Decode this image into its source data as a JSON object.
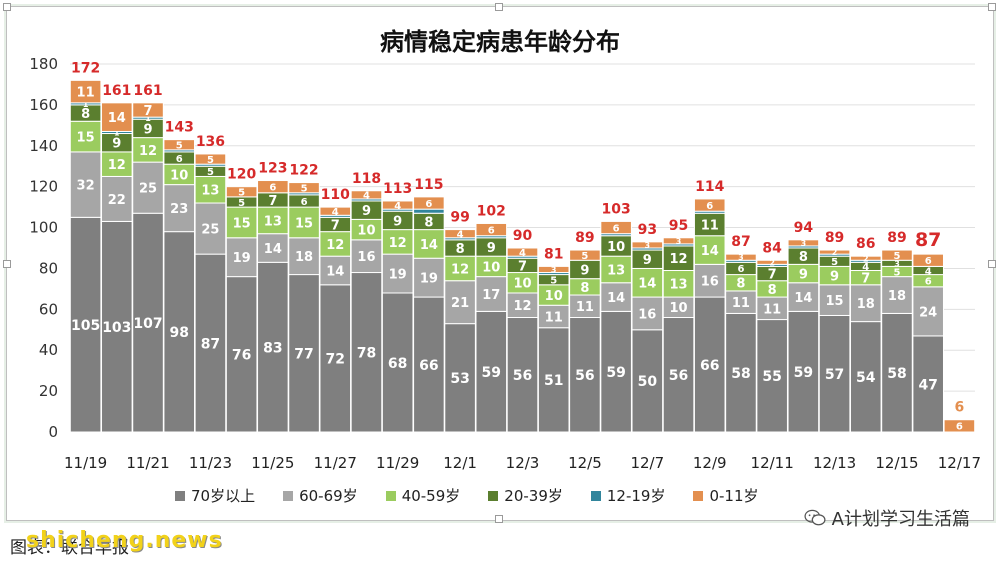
{
  "chart_data": {
    "type": "bar",
    "stacked": true,
    "title": "病情稳定病患年龄分布",
    "ylim": [
      0,
      180
    ],
    "yticks": [
      0,
      20,
      40,
      60,
      80,
      100,
      120,
      140,
      160,
      180
    ],
    "xtick_labels": [
      "11/19",
      "11/21",
      "11/23",
      "11/25",
      "11/27",
      "11/29",
      "12/1",
      "12/3",
      "12/5",
      "12/7",
      "12/9",
      "12/11",
      "12/13",
      "12/15",
      "12/17"
    ],
    "grid": true,
    "legend_position": "bottom",
    "categories": [
      "11/19",
      "11/20",
      "11/21",
      "11/22",
      "11/23",
      "11/24",
      "11/25",
      "11/26",
      "11/27",
      "11/28",
      "11/29",
      "11/30",
      "12/1",
      "12/2",
      "12/3",
      "12/4",
      "12/5",
      "12/6",
      "12/7",
      "12/8",
      "12/9",
      "12/10",
      "12/11",
      "12/12",
      "12/13",
      "12/14",
      "12/15",
      "12/16",
      "12/17"
    ],
    "totals": [
      "172",
      "161",
      "161",
      "143",
      "136",
      "120",
      "123",
      "122",
      "110",
      "118",
      "113",
      "115",
      "99",
      "102",
      "90",
      "81",
      "89",
      "103",
      "93",
      "95",
      "114",
      "87",
      "84",
      "94",
      "89",
      "86",
      "89",
      "87",
      "6"
    ],
    "series": [
      {
        "name": "70岁以上",
        "color": "#7f7f7f",
        "values": [
          105,
          103,
          107,
          98,
          87,
          76,
          83,
          77,
          72,
          78,
          68,
          66,
          53,
          59,
          56,
          51,
          56,
          59,
          50,
          56,
          66,
          58,
          55,
          59,
          57,
          54,
          58,
          47,
          0
        ],
        "labels": [
          "105",
          "103",
          "107",
          "98",
          "87",
          "76",
          "83",
          "77",
          "72",
          "78",
          "68",
          "66",
          "53",
          "59",
          "56",
          "51",
          "56",
          "59",
          "50",
          "56",
          "66",
          "58",
          "55",
          "59",
          "57",
          "54",
          "58",
          "47",
          ""
        ]
      },
      {
        "name": "60-69岁",
        "color": "#a6a6a6",
        "values": [
          32,
          22,
          25,
          23,
          25,
          19,
          14,
          18,
          14,
          16,
          19,
          19,
          21,
          17,
          12,
          11,
          11,
          14,
          16,
          10,
          16,
          11,
          11,
          14,
          15,
          18,
          18,
          24,
          0
        ],
        "labels": [
          "32",
          "22",
          "25",
          "23",
          "25",
          "19",
          "14",
          "18",
          "14",
          "16",
          "19",
          "19",
          "21",
          "17",
          "12",
          "11",
          "11",
          "14",
          "16",
          "10",
          "16",
          "11",
          "11",
          "14",
          "15",
          "18",
          "18",
          "24",
          ""
        ]
      },
      {
        "name": "40-59岁",
        "color": "#9bcc5f",
        "values": [
          15,
          12,
          12,
          10,
          13,
          15,
          13,
          15,
          12,
          10,
          12,
          14,
          12,
          10,
          10,
          10,
          8,
          13,
          14,
          13,
          14,
          8,
          8,
          9,
          9,
          7,
          5,
          6,
          0
        ],
        "labels": [
          "15",
          "12",
          "12",
          "10",
          "13",
          "15",
          "13",
          "15",
          "12",
          "10",
          "12",
          "14",
          "12",
          "10",
          "10",
          "10",
          "8",
          "13",
          "14",
          "13",
          "14",
          "8",
          "8",
          "9",
          "9",
          "7",
          "5",
          "6",
          ""
        ]
      },
      {
        "name": "20-39岁",
        "color": "#5b7f2f",
        "values": [
          8,
          9,
          9,
          6,
          5,
          5,
          7,
          6,
          7,
          9,
          9,
          8,
          8,
          9,
          7,
          5,
          9,
          10,
          9,
          12,
          11,
          6,
          7,
          8,
          5,
          4,
          3,
          4,
          0
        ],
        "labels": [
          "8",
          "9",
          "9",
          "6",
          "5",
          "5",
          "7",
          "6",
          "7",
          "9",
          "9",
          "8",
          "8",
          "9",
          "7",
          "5",
          "9",
          "10",
          "9",
          "12",
          "11",
          "6",
          "7",
          "8",
          "5",
          "4",
          "3",
          "4",
          ""
        ]
      },
      {
        "name": "12-19岁",
        "color": "#31859c",
        "values": [
          1,
          1,
          1,
          1,
          1,
          0,
          0,
          1,
          1,
          1,
          1,
          2,
          1,
          1,
          1,
          1,
          0,
          1,
          1,
          1,
          1,
          1,
          1,
          1,
          1,
          1,
          0,
          0,
          0
        ],
        "labels": [
          "1",
          "1",
          "1",
          "",
          "",
          "",
          "",
          "",
          "",
          "",
          "",
          "",
          "",
          "",
          "",
          "",
          "",
          "",
          "",
          "",
          "",
          "",
          "",
          "",
          "",
          "",
          "",
          "",
          ""
        ]
      },
      {
        "name": "0-11岁",
        "color": "#e38f4f",
        "values": [
          11,
          14,
          7,
          5,
          5,
          5,
          6,
          5,
          4,
          4,
          4,
          6,
          4,
          6,
          4,
          3,
          5,
          6,
          3,
          3,
          6,
          3,
          2,
          3,
          2,
          2,
          5,
          6,
          6
        ],
        "labels": [
          "11",
          "14",
          "7",
          "5",
          "5",
          "5",
          "6",
          "5",
          "4",
          "4",
          "4",
          "6",
          "4",
          "6",
          "4",
          "3",
          "5",
          "6",
          "3",
          "3",
          "6",
          "3",
          "2",
          "3",
          "2",
          "2",
          "5",
          "6",
          "6"
        ]
      }
    ]
  },
  "legend": {
    "items": [
      {
        "label": "70岁以上",
        "color": "#7f7f7f"
      },
      {
        "label": "60-69岁",
        "color": "#a6a6a6"
      },
      {
        "label": "40-59岁",
        "color": "#9bcc5f"
      },
      {
        "label": "20-39岁",
        "color": "#5b7f2f"
      },
      {
        "label": "12-19岁",
        "color": "#31859c"
      },
      {
        "label": "0-11岁",
        "color": "#e38f4f"
      }
    ]
  },
  "footer": {
    "caption": "图表：联合早报",
    "watermark": "shicheng.news",
    "account": "A计划学习生活篇"
  }
}
